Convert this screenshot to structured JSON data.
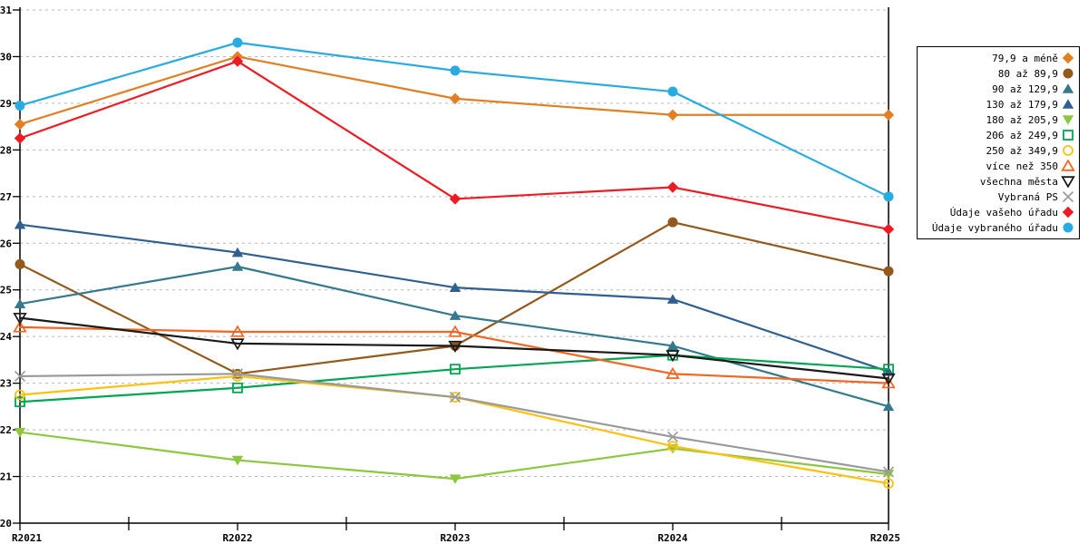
{
  "chart_data": {
    "type": "line",
    "title": "",
    "xlabel": "",
    "ylabel": "",
    "x_labels": [
      "R2021",
      "R2022",
      "R2023",
      "R2024",
      "R2025"
    ],
    "ylim": [
      20,
      31
    ],
    "y_ticks": [
      20,
      21,
      22,
      23,
      24,
      25,
      26,
      27,
      28,
      29,
      30,
      31
    ],
    "grid": "horizontal-dashed",
    "grid_color": "#b8b8b8",
    "axis_color": "#000000",
    "legend_position": "right",
    "series": [
      {
        "name": "79,9 a méně",
        "color": "#E17F24",
        "marker": "diamond",
        "fill": true,
        "values": [
          28.55,
          30.0,
          29.1,
          28.75,
          28.75
        ]
      },
      {
        "name": "80 až 89,9",
        "color": "#94591C",
        "marker": "circle",
        "fill": true,
        "values": [
          25.55,
          23.2,
          23.8,
          26.45,
          25.4
        ]
      },
      {
        "name": "90 až 129,9",
        "color": "#35798C",
        "marker": "triangle-up",
        "fill": true,
        "values": [
          24.7,
          25.5,
          24.45,
          23.8,
          22.5
        ]
      },
      {
        "name": "130 až 179,9",
        "color": "#30608F",
        "marker": "triangle-up",
        "fill": true,
        "values": [
          26.4,
          25.8,
          25.05,
          24.8,
          23.25
        ]
      },
      {
        "name": "180 až 205,9",
        "color": "#8DC63F",
        "marker": "triangle-down",
        "fill": true,
        "values": [
          21.95,
          21.35,
          20.95,
          21.6,
          21.05
        ]
      },
      {
        "name": "206 až 249,9",
        "color": "#00A651",
        "marker": "square",
        "fill": false,
        "values": [
          22.6,
          22.9,
          23.3,
          23.6,
          23.3
        ]
      },
      {
        "name": "250 až 349,9",
        "color": "#FDC112",
        "marker": "circle",
        "fill": false,
        "values": [
          22.75,
          23.15,
          22.7,
          21.65,
          20.85
        ]
      },
      {
        "name": "více než 350",
        "color": "#F26522",
        "marker": "triangle-up",
        "fill": false,
        "values": [
          24.2,
          24.1,
          24.1,
          23.2,
          23.0
        ]
      },
      {
        "name": "všechna města",
        "color": "#1A1A1A",
        "marker": "triangle-down",
        "fill": false,
        "values": [
          24.4,
          23.85,
          23.8,
          23.6,
          23.1
        ]
      },
      {
        "name": "Vybraná PS",
        "color": "#999999",
        "marker": "x",
        "fill": false,
        "values": [
          23.15,
          23.2,
          22.7,
          21.85,
          21.1
        ]
      },
      {
        "name": "Údaje vašeho úřadu",
        "color": "#ED1C24",
        "marker": "diamond",
        "fill": true,
        "values": [
          28.25,
          29.9,
          26.95,
          27.2,
          26.3
        ]
      },
      {
        "name": "Údaje vybraného úřadu",
        "color": "#29ABE2",
        "marker": "circle",
        "fill": true,
        "values": [
          28.95,
          30.3,
          29.7,
          29.25,
          27.0
        ]
      }
    ]
  }
}
